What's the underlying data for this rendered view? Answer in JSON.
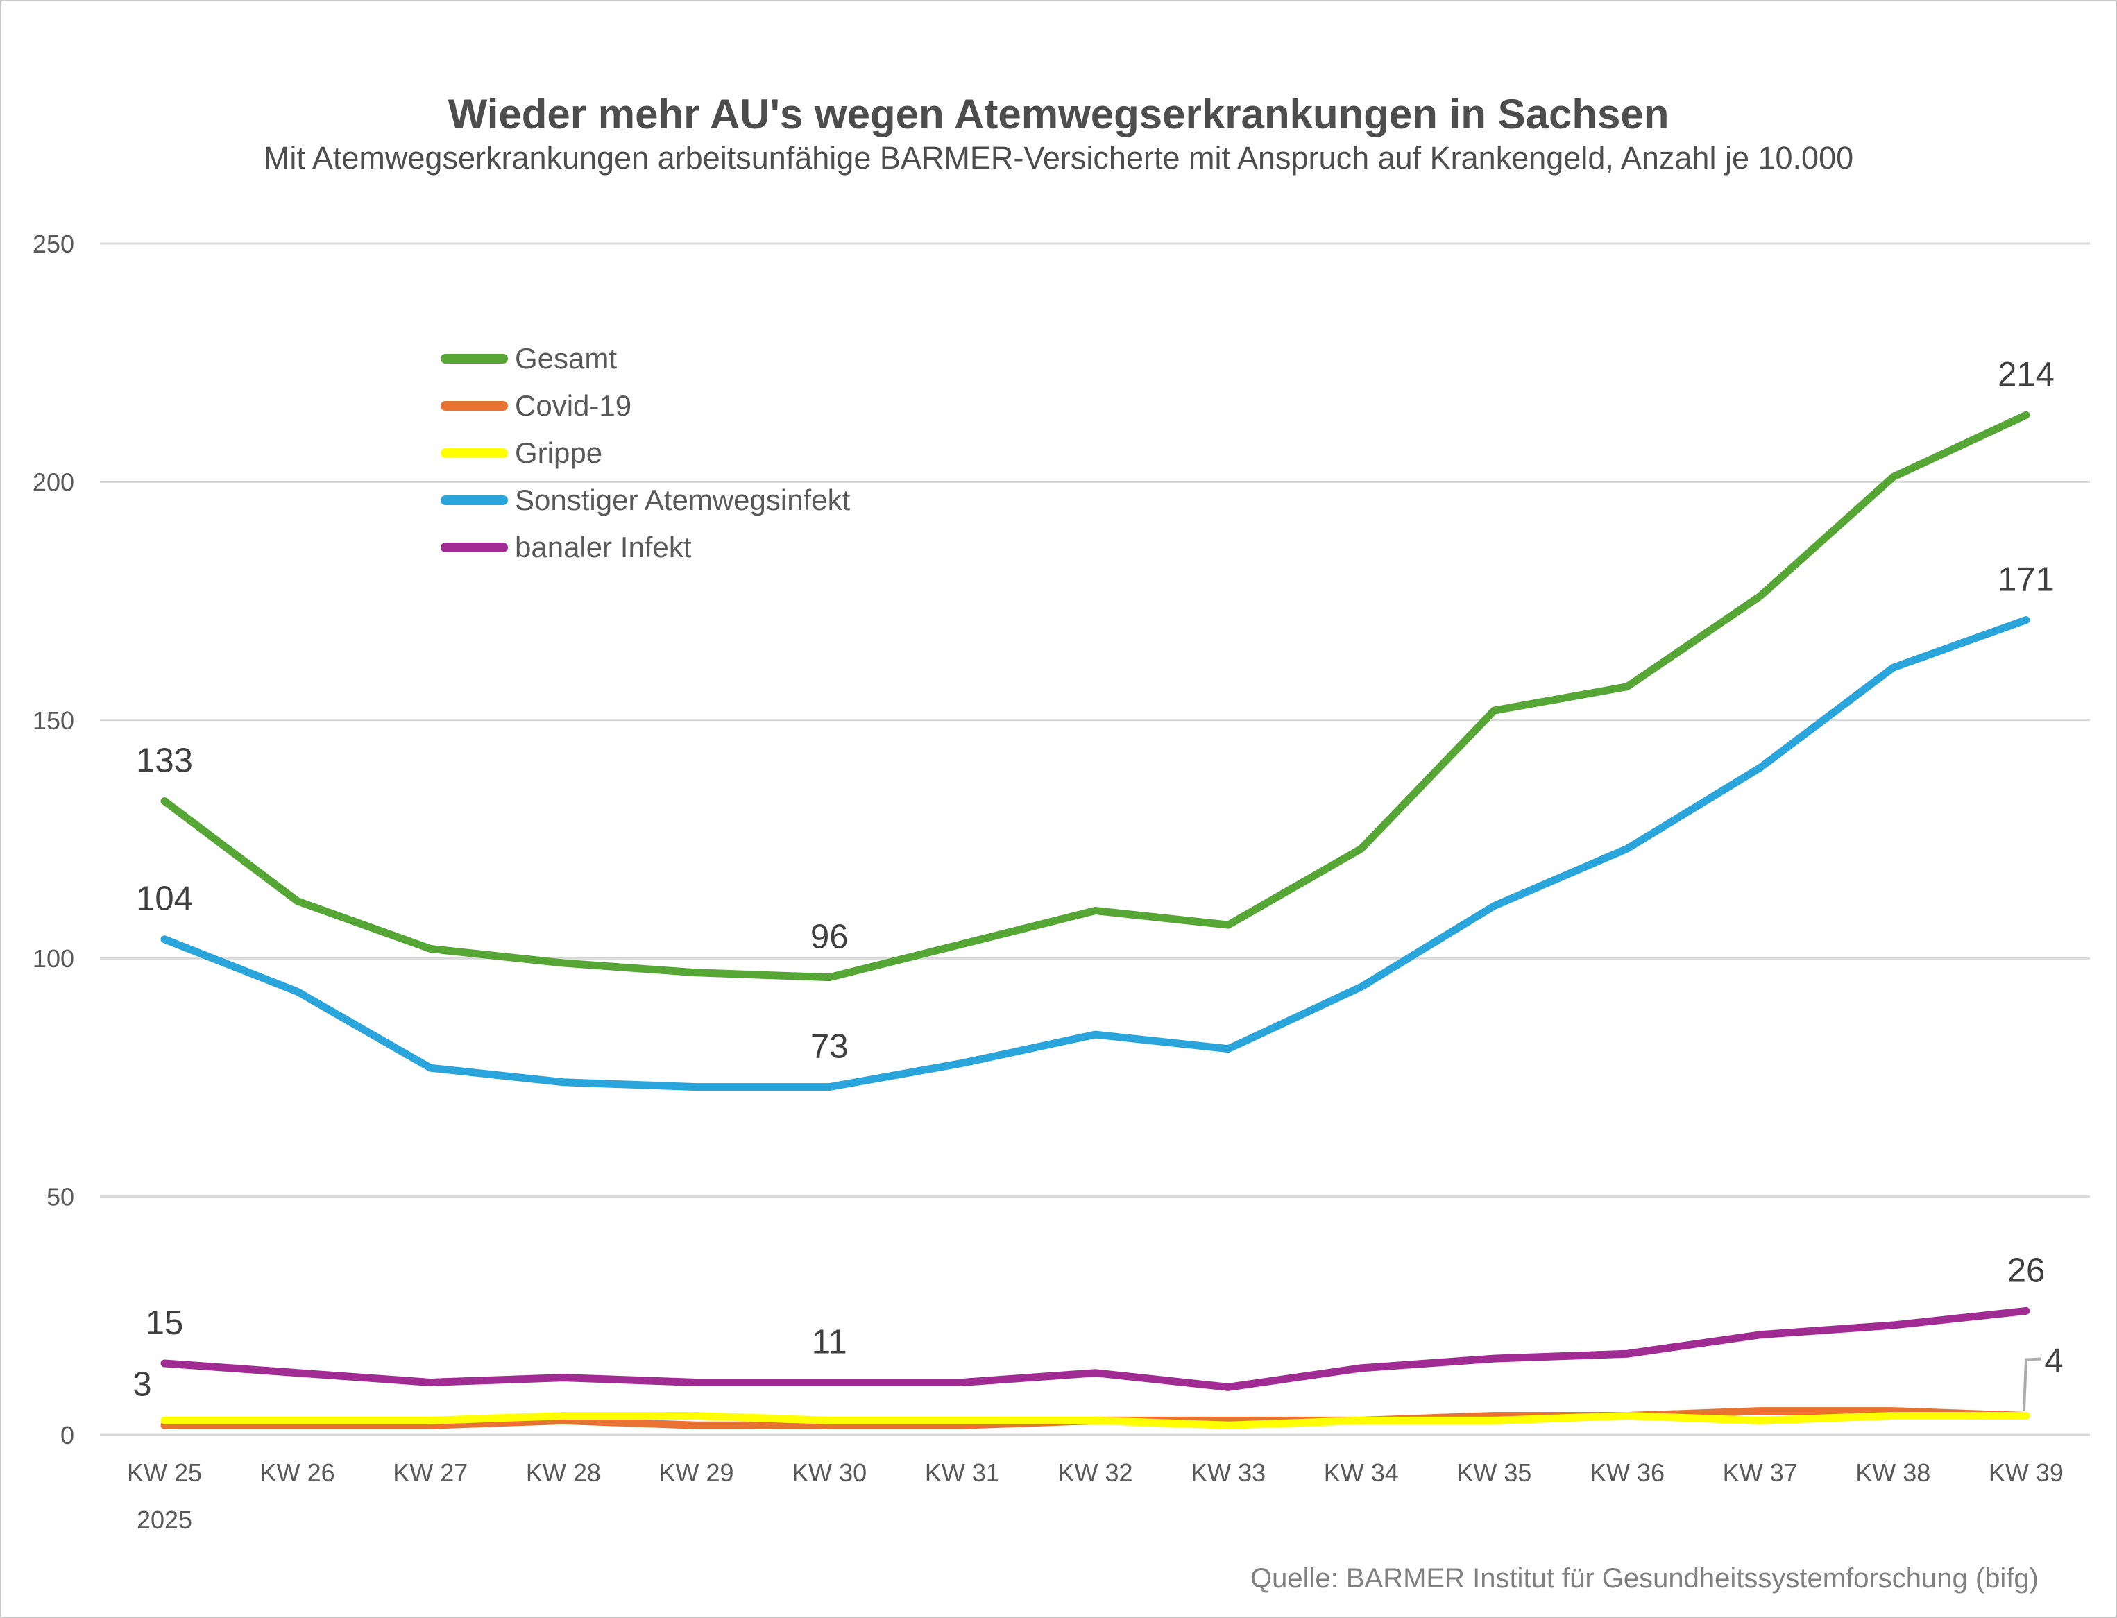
{
  "source": "Quelle: BARMER Institut für Gesundheitssystemforschung (bifg)",
  "colors": {
    "background": "#FFFFFF",
    "border": "#C9C9C9",
    "grid": "#D9D9D9",
    "axis_text": "#595959",
    "data_label": "#3F3F3F",
    "title_text": "#4D4D4D",
    "legend_text": "#595959",
    "source_text": "#808080",
    "callout_line": "#ACACAC"
  },
  "chart_data": {
    "type": "line",
    "title": "Wieder mehr AU's wegen Atemwegserkrankungen in Sachsen",
    "subtitle": "Mit Atemwegserkrankungen arbeitsunfähige BARMER-Versicherte mit Anspruch auf Krankengeld, Anzahl je 10.000",
    "xlabel": "",
    "ylabel": "",
    "ylim": [
      0,
      250
    ],
    "y_ticks": [
      0,
      50,
      100,
      150,
      200,
      250
    ],
    "grid": "horizontal",
    "legend_position": "inside-top-left",
    "categories": [
      "KW 25",
      "KW 26",
      "KW 27",
      "KW 28",
      "KW 29",
      "KW 30",
      "KW 31",
      "KW 32",
      "KW 33",
      "KW 34",
      "KW 35",
      "KW 36",
      "KW 37",
      "KW 38",
      "KW 39"
    ],
    "x_first_sublabel": "2025",
    "series": [
      {
        "name": "Gesamt",
        "color": "#56A636",
        "values": [
          133,
          112,
          102,
          99,
          97,
          96,
          103,
          110,
          107,
          123,
          152,
          157,
          176,
          201,
          214
        ],
        "point_labels": [
          0,
          5,
          14
        ]
      },
      {
        "name": "Covid-19",
        "color": "#E97132",
        "values": [
          2,
          2,
          2,
          3,
          2,
          2,
          2,
          3,
          3,
          3,
          4,
          4,
          5,
          5,
          4
        ],
        "point_labels": []
      },
      {
        "name": "Grippe",
        "color": "#FFFF00",
        "values": [
          3,
          3,
          3,
          4,
          4,
          3,
          3,
          3,
          2,
          3,
          3,
          4,
          3,
          4,
          4
        ],
        "point_labels": [
          0
        ],
        "label_offsets": {
          "0": {
            "dx": -32,
            "dy": 6
          }
        },
        "callout_label": {
          "index": 14
        }
      },
      {
        "name": "Sonstiger Atemwegsinfekt",
        "color": "#29A5DC",
        "values": [
          104,
          93,
          77,
          74,
          73,
          73,
          78,
          84,
          81,
          94,
          111,
          123,
          140,
          161,
          171
        ],
        "point_labels": [
          0,
          5,
          14
        ]
      },
      {
        "name": "banaler Infekt",
        "color": "#A02B93",
        "values": [
          15,
          13,
          11,
          12,
          11,
          11,
          11,
          13,
          10,
          14,
          16,
          17,
          21,
          23,
          26
        ],
        "point_labels": [
          0,
          5,
          14
        ]
      }
    ]
  }
}
